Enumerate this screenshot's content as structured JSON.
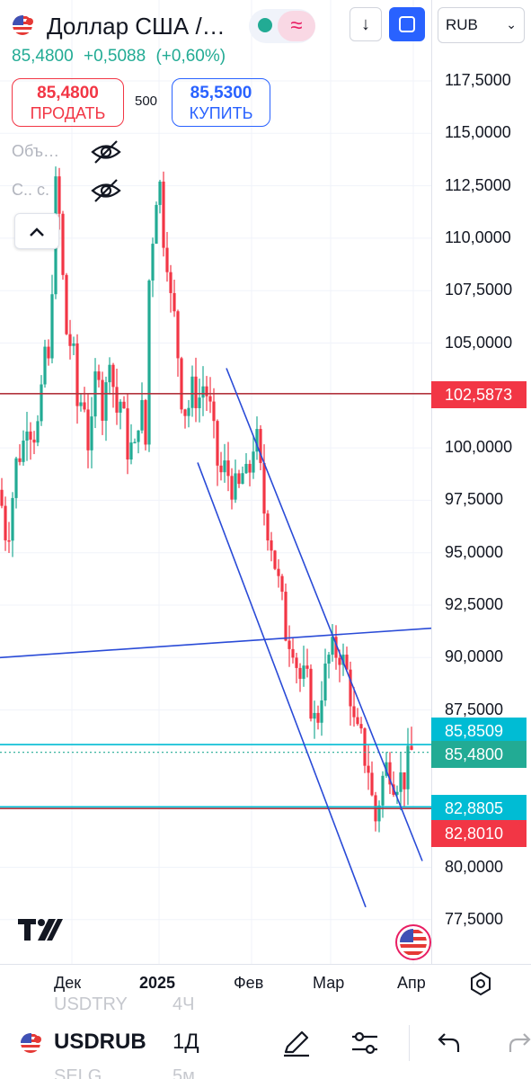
{
  "header": {
    "title": "Доллар США /…",
    "last_price": "85,4800",
    "change_abs": "+0,5088",
    "change_pct": "(+0,60%)",
    "sell_price": "85,4800",
    "sell_label": "ПРОДАТЬ",
    "quantity": "500",
    "buy_price": "85,5300",
    "buy_label": "КУПИТЬ",
    "currency": "RUB",
    "wave_glyph": "≈",
    "down_glyph": "↓"
  },
  "indicators": [
    {
      "label": "Объ…"
    },
    {
      "label": "С.. с."
    }
  ],
  "collapse_glyph": "^",
  "price_scale": {
    "ticks": [
      {
        "label": "117,5000",
        "value": 117.5
      },
      {
        "label": "115,0000",
        "value": 115.0
      },
      {
        "label": "112,5000",
        "value": 112.5
      },
      {
        "label": "110,0000",
        "value": 110.0
      },
      {
        "label": "107,5000",
        "value": 107.5
      },
      {
        "label": "105,0000",
        "value": 105.0
      },
      {
        "label": "100,0000",
        "value": 100.0
      },
      {
        "label": "97,5000",
        "value": 97.5
      },
      {
        "label": "95,0000",
        "value": 95.0
      },
      {
        "label": "92,5000",
        "value": 92.5
      },
      {
        "label": "90,0000",
        "value": 90.0
      },
      {
        "label": "87,5000",
        "value": 87.5
      },
      {
        "label": "80,0000",
        "value": 80.0
      },
      {
        "label": "77,5000",
        "value": 77.5
      }
    ],
    "badges": [
      {
        "label": "102,5873",
        "value": 102.5873,
        "color": "#f23645"
      },
      {
        "label": "85,8509",
        "value": 85.8509,
        "color": "#00bcd4"
      },
      {
        "label": "85,4800",
        "value": 85.48,
        "color": "#22ab94"
      },
      {
        "label": "82,8805",
        "value": 82.8805,
        "color": "#00bcd4"
      },
      {
        "label": "82,8010",
        "value": 82.801,
        "color": "#f23645"
      }
    ]
  },
  "time_axis": [
    {
      "label": "Дек",
      "bold": false
    },
    {
      "label": "2025",
      "bold": true
    },
    {
      "label": "Фев",
      "bold": false
    },
    {
      "label": "Мар",
      "bold": false
    },
    {
      "label": "Апр",
      "bold": false
    }
  ],
  "bottom_bar": {
    "symbol": "USDRUB",
    "timeframe": "1Д",
    "ghost_top_symbol": "USDTRY",
    "ghost_top_tf": "4Ч",
    "ghost_bottom_symbol": "SELG",
    "ghost_bottom_tf": "5м"
  },
  "colors": {
    "up": "#22ab94",
    "down": "#f23645",
    "drawing": "#2a4bd7",
    "horizontal_red": "#b2353f",
    "horizontal_teal": "#00bcd4"
  },
  "chart_data": {
    "type": "candlestick",
    "symbol": "USDRUB",
    "interval": "1Д",
    "x_labels": [
      "Дек",
      "2025",
      "Фев",
      "Мар",
      "Апр"
    ],
    "ylim": [
      76.5,
      120.5
    ],
    "last_price": 85.48,
    "path": [
      [
        0,
        98.0
      ],
      [
        4,
        96.5
      ],
      [
        8,
        95.5
      ],
      [
        12,
        97.0
      ],
      [
        16,
        98.5
      ],
      [
        20,
        100.0
      ],
      [
        24,
        99.5
      ],
      [
        28,
        101.0
      ],
      [
        32,
        102.0
      ],
      [
        36,
        100.0
      ],
      [
        40,
        101.5
      ],
      [
        44,
        100.5
      ],
      [
        48,
        104.0
      ],
      [
        52,
        105.5
      ],
      [
        55,
        103.0
      ],
      [
        58,
        108.0
      ],
      [
        61,
        112.0
      ],
      [
        64,
        113.0
      ],
      [
        67,
        110.0
      ],
      [
        70,
        108.0
      ],
      [
        73,
        106.0
      ],
      [
        76,
        104.5
      ],
      [
        80,
        105.5
      ],
      [
        84,
        103.0
      ],
      [
        88,
        101.0
      ],
      [
        92,
        103.5
      ],
      [
        96,
        101.0
      ],
      [
        100,
        99.5
      ],
      [
        104,
        102.0
      ],
      [
        108,
        104.5
      ],
      [
        112,
        103.5
      ],
      [
        116,
        100.0
      ],
      [
        120,
        105.5
      ],
      [
        124,
        104.0
      ],
      [
        128,
        102.0
      ],
      [
        132,
        101.5
      ],
      [
        136,
        103.0
      ],
      [
        140,
        99.5
      ],
      [
        144,
        100.5
      ],
      [
        148,
        99.5
      ],
      [
        152,
        100.0
      ],
      [
        156,
        103.0
      ],
      [
        160,
        100.5
      ],
      [
        163,
        100.0
      ],
      [
        166,
        108.0
      ],
      [
        169,
        110.5
      ],
      [
        172,
        109.5
      ],
      [
        175,
        113.5
      ],
      [
        178,
        112.5
      ],
      [
        181,
        110.0
      ],
      [
        184,
        110.5
      ],
      [
        187,
        108.5
      ],
      [
        190,
        107.0
      ],
      [
        193,
        106.5
      ],
      [
        196,
        105.5
      ],
      [
        199,
        104.0
      ],
      [
        202,
        102.5
      ],
      [
        205,
        102.0
      ],
      [
        208,
        101.5
      ],
      [
        212,
        102.5
      ],
      [
        216,
        103.0
      ],
      [
        220,
        102.0
      ],
      [
        224,
        102.8
      ],
      [
        228,
        103.2
      ],
      [
        232,
        102.0
      ],
      [
        236,
        101.5
      ],
      [
        240,
        99.5
      ],
      [
        244,
        99.0
      ],
      [
        248,
        98.5
      ],
      [
        252,
        99.5
      ],
      [
        256,
        98.0
      ],
      [
        260,
        98.5
      ],
      [
        264,
        97.5
      ],
      [
        268,
        98.5
      ],
      [
        272,
        99.0
      ],
      [
        276,
        98.0
      ],
      [
        280,
        100.0
      ],
      [
        284,
        100.5
      ],
      [
        288,
        100.0
      ],
      [
        292,
        97.5
      ],
      [
        296,
        96.5
      ],
      [
        300,
        96.0
      ],
      [
        304,
        95.0
      ],
      [
        308,
        94.0
      ],
      [
        312,
        93.0
      ],
      [
        316,
        92.0
      ],
      [
        320,
        90.5
      ],
      [
        324,
        91.5
      ],
      [
        328,
        90.0
      ],
      [
        332,
        89.5
      ],
      [
        336,
        88.5
      ],
      [
        340,
        89.5
      ],
      [
        344,
        88.0
      ],
      [
        348,
        87.5
      ],
      [
        352,
        86.5
      ],
      [
        356,
        88.0
      ],
      [
        360,
        89.0
      ],
      [
        364,
        89.5
      ],
      [
        368,
        90.5
      ],
      [
        372,
        90.0
      ],
      [
        376,
        90.5
      ],
      [
        380,
        90.0
      ],
      [
        384,
        89.5
      ],
      [
        388,
        89.0
      ],
      [
        392,
        87.5
      ],
      [
        396,
        86.0
      ],
      [
        400,
        86.5
      ],
      [
        404,
        85.5
      ],
      [
        408,
        85.0
      ],
      [
        412,
        84.5
      ],
      [
        416,
        82.0
      ],
      [
        420,
        82.5
      ],
      [
        424,
        84.0
      ],
      [
        428,
        84.5
      ],
      [
        432,
        85.0
      ],
      [
        436,
        84.5
      ],
      [
        440,
        84.0
      ],
      [
        444,
        84.5
      ],
      [
        448,
        84.0
      ],
      [
        452,
        84.5
      ],
      [
        456,
        85.5
      ],
      [
        459,
        85.48
      ]
    ],
    "drawings": {
      "horizontal_red": [
        102.5873,
        82.801
      ],
      "horizontal_teal": [
        85.8509,
        82.8805
      ],
      "dotted_last": 85.48,
      "channel_upper": [
        [
          252,
          103.8
        ],
        [
          470,
          80.3
        ]
      ],
      "channel_lower": [
        [
          220,
          99.3
        ],
        [
          407,
          78.1
        ]
      ],
      "trend_line": [
        [
          0,
          90.0
        ],
        [
          480,
          91.4
        ]
      ]
    }
  }
}
